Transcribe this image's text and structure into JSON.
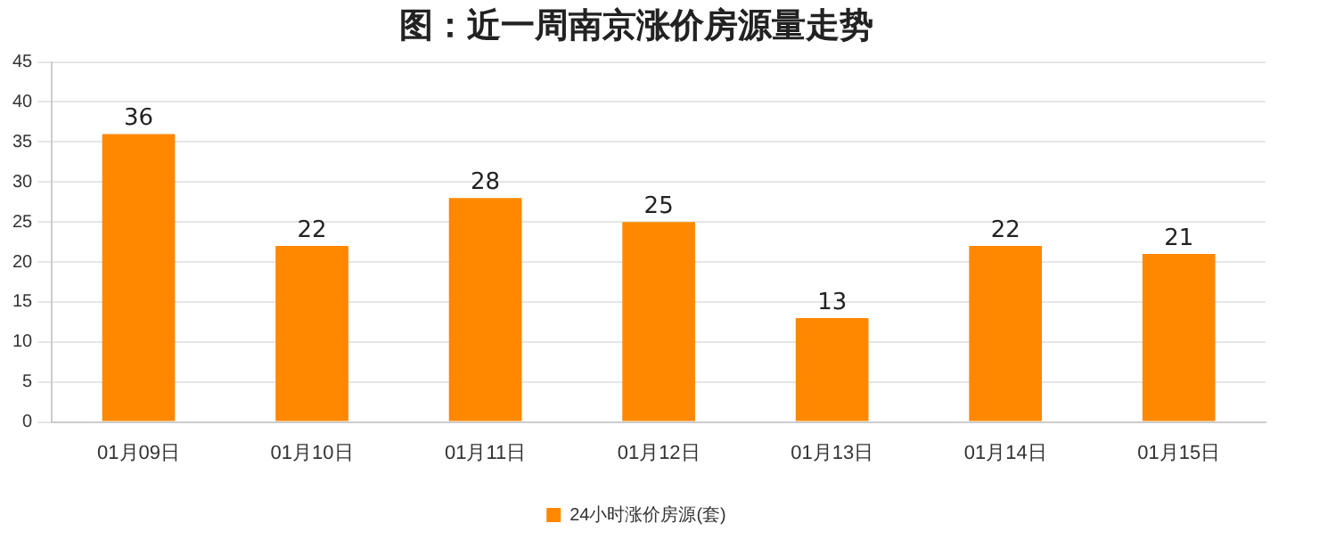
{
  "chart_data": {
    "type": "bar",
    "title": "图：近一周南京涨价房源量走势",
    "categories": [
      "01月09日",
      "01月10日",
      "01月11日",
      "01月12日",
      "01月13日",
      "01月14日",
      "01月15日"
    ],
    "series": [
      {
        "name": "24小时涨价房源(套)",
        "color": "#ff8800",
        "values": [
          36,
          22,
          28,
          25,
          13,
          22,
          21
        ]
      }
    ],
    "ylim": [
      0,
      45
    ],
    "yticks": [
      0,
      5,
      10,
      15,
      20,
      25,
      30,
      35,
      40,
      45
    ],
    "grid": "y",
    "legend": "bottom",
    "data_labels": true
  }
}
